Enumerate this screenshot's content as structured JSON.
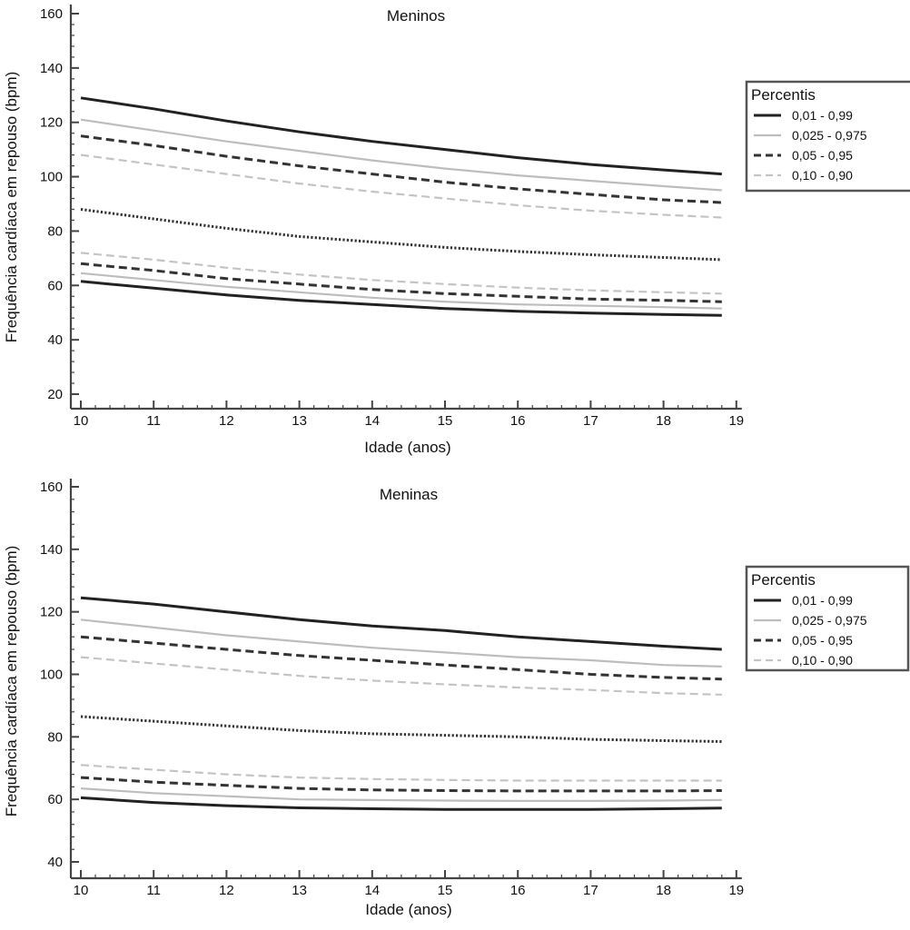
{
  "chart_data": [
    {
      "type": "line",
      "title": "Meninos",
      "xlabel": "Idade (anos)",
      "ylabel": "Frequência cardíaca em repouso (bpm)",
      "xlim": [
        10,
        19
      ],
      "ylim": [
        17,
        162
      ],
      "xticks": [
        "10",
        "11",
        "12",
        "13",
        "14",
        "15",
        "16",
        "17",
        "18",
        "19"
      ],
      "yticks": [
        "20",
        "40",
        "60",
        "80",
        "100",
        "120",
        "140",
        "160"
      ],
      "legend": {
        "title": "Percentis",
        "placement": "right",
        "entries": [
          {
            "label": "0,01 - 0,99",
            "color": "#222222",
            "dash": "solid",
            "width": 3
          },
          {
            "label": "0,025 - 0,975",
            "color": "#bdbdbd",
            "dash": "solid",
            "width": 2.2
          },
          {
            "label": "0,05 - 0,95",
            "color": "#333333",
            "dash": "dashed",
            "width": 3
          },
          {
            "label": "0,10 - 0,90",
            "color": "#c4c4c4",
            "dash": "dashed",
            "width": 2.2
          }
        ]
      },
      "x": [
        10,
        11,
        12,
        13,
        14,
        15,
        16,
        17,
        18,
        18.8
      ],
      "series": [
        {
          "style": "p01",
          "values": [
            129,
            125,
            120.5,
            116.5,
            113,
            110,
            107,
            104.5,
            102.5,
            101
          ]
        },
        {
          "style": "p025",
          "values": [
            121,
            117,
            113,
            109.5,
            106,
            103,
            100.5,
            98.5,
            96.5,
            95
          ]
        },
        {
          "style": "p05",
          "values": [
            115,
            111.5,
            107.5,
            104,
            101,
            98,
            95.5,
            93.5,
            91.5,
            90.5
          ]
        },
        {
          "style": "p10",
          "values": [
            108,
            104.5,
            101,
            97.5,
            94.5,
            92,
            89.5,
            87.5,
            86,
            85
          ]
        },
        {
          "style": "median",
          "values": [
            88,
            84.5,
            81,
            78,
            76,
            74,
            72.5,
            71.3,
            70.3,
            69.5
          ]
        },
        {
          "style": "p10",
          "values": [
            72,
            69.5,
            66.5,
            64,
            62,
            60.5,
            59.2,
            58.2,
            57.5,
            57
          ]
        },
        {
          "style": "p05",
          "values": [
            68,
            65.5,
            62.5,
            60.5,
            58.5,
            57,
            56,
            55,
            54.5,
            54
          ]
        },
        {
          "style": "p025",
          "values": [
            64.5,
            62,
            59.5,
            57.5,
            55.5,
            54,
            53,
            52.5,
            52,
            51.5
          ]
        },
        {
          "style": "p01",
          "values": [
            61.5,
            59,
            56.5,
            54.5,
            53,
            51.5,
            50.5,
            49.8,
            49.3,
            49
          ]
        }
      ]
    },
    {
      "type": "line",
      "title": "Meninas",
      "xlabel": "Idade (anos)",
      "ylabel": "Frequência cardíaca em repouso (bpm)",
      "xlim": [
        10,
        19
      ],
      "ylim": [
        37,
        163
      ],
      "xticks": [
        "10",
        "11",
        "12",
        "13",
        "14",
        "15",
        "16",
        "17",
        "18",
        "19"
      ],
      "yticks": [
        "40",
        "60",
        "80",
        "100",
        "120",
        "140",
        "160"
      ],
      "legend": {
        "title": "Percentis",
        "placement": "right",
        "entries": [
          {
            "label": "0,01 - 0,99",
            "color": "#222222",
            "dash": "solid",
            "width": 3
          },
          {
            "label": "0,025 - 0,975",
            "color": "#bdbdbd",
            "dash": "solid",
            "width": 2.2
          },
          {
            "label": "0,05 - 0,95",
            "color": "#333333",
            "dash": "dashed",
            "width": 3
          },
          {
            "label": "0,10 - 0,90",
            "color": "#c4c4c4",
            "dash": "dashed",
            "width": 2.2
          }
        ]
      },
      "x": [
        10,
        11,
        12,
        13,
        14,
        15,
        16,
        17,
        18,
        18.8
      ],
      "series": [
        {
          "style": "p01",
          "values": [
            124.5,
            122.5,
            120,
            117.5,
            115.5,
            114,
            112,
            110.5,
            109,
            108
          ]
        },
        {
          "style": "p025",
          "values": [
            117.5,
            115,
            112.5,
            110.5,
            108.5,
            107,
            105.5,
            104.5,
            103,
            102.5
          ]
        },
        {
          "style": "p05",
          "values": [
            112,
            110,
            108,
            106,
            104.5,
            103,
            101.5,
            100,
            99,
            98.5
          ]
        },
        {
          "style": "p10",
          "values": [
            105.5,
            103.5,
            101.5,
            99.5,
            98,
            96.8,
            95.8,
            95,
            94,
            93.5
          ]
        },
        {
          "style": "median",
          "values": [
            86.5,
            85,
            83.5,
            82,
            81,
            80.5,
            80,
            79.2,
            78.8,
            78.5
          ]
        },
        {
          "style": "p10",
          "values": [
            71,
            69.5,
            68,
            67,
            66.5,
            66.2,
            66,
            66,
            66,
            66
          ]
        },
        {
          "style": "p05",
          "values": [
            67,
            65.5,
            64.5,
            63.5,
            63,
            62.8,
            62.7,
            62.7,
            62.7,
            62.8
          ]
        },
        {
          "style": "p025",
          "values": [
            63.5,
            62,
            61,
            60,
            59.8,
            59.6,
            59.5,
            59.5,
            59.6,
            59.8
          ]
        },
        {
          "style": "p01",
          "values": [
            60.5,
            59,
            58,
            57.3,
            57,
            56.8,
            56.8,
            56.8,
            57,
            57.2
          ]
        }
      ]
    }
  ]
}
